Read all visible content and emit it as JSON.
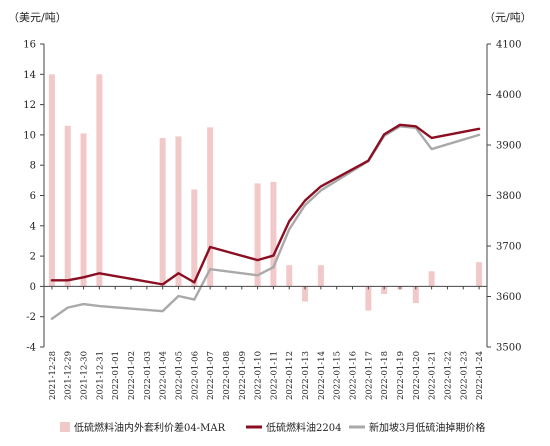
{
  "chart_data": {
    "type": "bar+line",
    "y_left_unit": "（美元/吨）",
    "y_right_unit": "（元/吨）",
    "ylim_left": [
      -4,
      16
    ],
    "ylim_right": [
      3500,
      4100
    ],
    "yticks_left": [
      -4,
      -2,
      0,
      2,
      4,
      6,
      8,
      10,
      12,
      14,
      16
    ],
    "yticks_right": [
      3500,
      3600,
      3700,
      3800,
      3900,
      4000,
      4100
    ],
    "categories": [
      "2021-12-28",
      "2021-12-29",
      "2021-12-30",
      "2021-12-31",
      "2022-01-01",
      "2022-01-02",
      "2022-01-03",
      "2022-01-04",
      "2022-01-05",
      "2022-01-06",
      "2022-01-07",
      "2022-01-08",
      "2022-01-09",
      "2022-01-10",
      "2022-01-11",
      "2022-01-12",
      "2022-01-13",
      "2022-01-14",
      "2022-01-15",
      "2022-01-16",
      "2022-01-17",
      "2022-01-18",
      "2022-01-19",
      "2022-01-20",
      "2022-01-21",
      "2022-01-22",
      "2022-01-23",
      "2022-01-24"
    ],
    "series": [
      {
        "name": "低硫燃料油内外套利价差04-MAR",
        "axis": "left",
        "kind": "bar",
        "color": "#f2c9c9",
        "values": [
          14.0,
          10.6,
          10.1,
          14.0,
          null,
          null,
          null,
          9.8,
          9.9,
          6.4,
          10.5,
          null,
          null,
          6.8,
          6.9,
          1.4,
          -1.0,
          1.4,
          null,
          null,
          -1.6,
          -0.5,
          -0.2,
          -1.1,
          1.0,
          null,
          null,
          1.6
        ]
      },
      {
        "name": "低硫燃料油2204",
        "axis": "right",
        "kind": "line",
        "color": "#8b0e22",
        "values": [
          3632,
          3632,
          3638,
          3646,
          null,
          null,
          null,
          3624,
          3646,
          3628,
          3698,
          null,
          null,
          3672,
          3681,
          3749,
          3790,
          3818,
          null,
          null,
          3869,
          3921,
          3940,
          3937,
          3914,
          null,
          null,
          3932
        ]
      },
      {
        "name": "新加坡3月低硫油掉期价格",
        "axis": "right",
        "kind": "line",
        "color": "#a9a9a9",
        "values": [
          3556,
          3578,
          3585,
          3581,
          null,
          null,
          null,
          3571,
          3601,
          3594,
          3654,
          null,
          null,
          3642,
          3658,
          3733,
          3781,
          3810,
          null,
          null,
          3868,
          3918,
          3937,
          3934,
          3892,
          null,
          null,
          3920
        ]
      }
    ],
    "legend_position": "bottom",
    "grid": false
  }
}
